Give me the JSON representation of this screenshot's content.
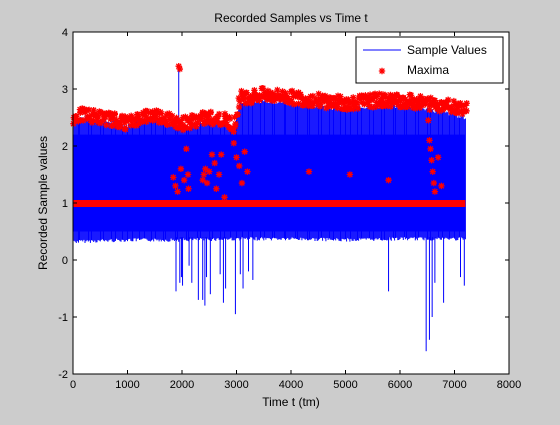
{
  "chart_data": {
    "type": "line",
    "title": "Recorded Samples vs Time t",
    "xlabel": "Time t (tm)",
    "ylabel": "Recorded Sample values",
    "xlim": [
      0,
      8000
    ],
    "ylim": [
      -2,
      4
    ],
    "xticks": [
      0,
      1000,
      2000,
      3000,
      4000,
      5000,
      6000,
      7000,
      8000
    ],
    "yticks": [
      -2,
      -1,
      0,
      1,
      2,
      3,
      4
    ],
    "xtick_labels": [
      "0",
      "1000",
      "2000",
      "3000",
      "4000",
      "5000",
      "6000",
      "7000",
      "8000"
    ],
    "ytick_labels": [
      "-2",
      "-1",
      "0",
      "1",
      "2",
      "3",
      "4"
    ],
    "grid": false,
    "legend_position": "top-right",
    "colors": {
      "sample_line": "#0000ff",
      "maxima_marker": "#ff0000"
    },
    "series": [
      {
        "name": "Sample Values",
        "style": "line",
        "band": {
          "x_start": 0,
          "x_end": 7200,
          "upper": [
            [
              0,
              2.45
            ],
            [
              200,
              2.5
            ],
            [
              500,
              2.45
            ],
            [
              800,
              2.4
            ],
            [
              1000,
              2.35
            ],
            [
              1200,
              2.45
            ],
            [
              1500,
              2.5
            ],
            [
              1800,
              2.35
            ],
            [
              2000,
              2.3
            ],
            [
              2200,
              2.35
            ],
            [
              2500,
              2.45
            ],
            [
              2800,
              2.4
            ],
            [
              2950,
              2.3
            ],
            [
              3050,
              2.75
            ],
            [
              3500,
              2.8
            ],
            [
              4000,
              2.75
            ],
            [
              4500,
              2.7
            ],
            [
              5000,
              2.65
            ],
            [
              5500,
              2.7
            ],
            [
              6000,
              2.7
            ],
            [
              6500,
              2.65
            ],
            [
              7000,
              2.55
            ],
            [
              7200,
              2.5
            ]
          ],
          "lower": [
            [
              0,
              0.35
            ],
            [
              1000,
              0.38
            ],
            [
              2000,
              0.38
            ],
            [
              3000,
              0.4
            ],
            [
              4000,
              0.4
            ],
            [
              5000,
              0.38
            ],
            [
              6000,
              0.4
            ],
            [
              7200,
              0.4
            ]
          ]
        },
        "spikes": [
          [
            1890,
            -0.55
          ],
          [
            1960,
            -0.4
          ],
          [
            1990,
            -0.3
          ],
          [
            2010,
            -0.45
          ],
          [
            2130,
            -0.1
          ],
          [
            2180,
            -0.4
          ],
          [
            2300,
            -0.7
          ],
          [
            2380,
            -0.7
          ],
          [
            2420,
            -0.8
          ],
          [
            2450,
            -0.3
          ],
          [
            2520,
            -0.6
          ],
          [
            2700,
            -0.25
          ],
          [
            2760,
            -0.75
          ],
          [
            2800,
            -0.5
          ],
          [
            2980,
            -0.95
          ],
          [
            3070,
            -0.25
          ],
          [
            3120,
            -0.5
          ],
          [
            3220,
            -0.2
          ],
          [
            3300,
            -0.35
          ],
          [
            5790,
            -0.55
          ],
          [
            6480,
            -1.6
          ],
          [
            6540,
            -1.4
          ],
          [
            6590,
            -1.0
          ],
          [
            6640,
            -0.4
          ],
          [
            6800,
            -0.75
          ],
          [
            7110,
            -0.3
          ],
          [
            7180,
            -0.45
          ]
        ],
        "peaks": [
          [
            1940,
            3.35
          ]
        ]
      },
      {
        "name": "Maxima",
        "style": "markers",
        "marker": "*",
        "upper_envelope": [
          [
            0,
            2.5
          ],
          [
            200,
            2.55
          ],
          [
            500,
            2.5
          ],
          [
            800,
            2.45
          ],
          [
            1000,
            2.4
          ],
          [
            1200,
            2.5
          ],
          [
            1500,
            2.55
          ],
          [
            1800,
            2.45
          ],
          [
            2000,
            2.4
          ],
          [
            2200,
            2.45
          ],
          [
            2500,
            2.5
          ],
          [
            2800,
            2.45
          ],
          [
            2950,
            2.35
          ],
          [
            3050,
            2.85
          ],
          [
            3500,
            2.9
          ],
          [
            4000,
            2.85
          ],
          [
            4500,
            2.8
          ],
          [
            5000,
            2.75
          ],
          [
            5500,
            2.8
          ],
          [
            6000,
            2.8
          ],
          [
            6500,
            2.75
          ],
          [
            7000,
            2.7
          ],
          [
            7200,
            2.65
          ]
        ],
        "baseline_y": 1.0,
        "scattered_points": [
          [
            1940,
            3.4
          ],
          [
            1960,
            3.35
          ],
          [
            1840,
            1.45
          ],
          [
            1880,
            1.3
          ],
          [
            1920,
            1.2
          ],
          [
            1980,
            1.6
          ],
          [
            2040,
            1.4
          ],
          [
            2080,
            1.95
          ],
          [
            2110,
            1.5
          ],
          [
            2120,
            1.25
          ],
          [
            2380,
            1.4
          ],
          [
            2400,
            1.5
          ],
          [
            2430,
            1.6
          ],
          [
            2460,
            1.35
          ],
          [
            2500,
            1.55
          ],
          [
            2550,
            1.85
          ],
          [
            2600,
            1.7
          ],
          [
            2630,
            1.25
          ],
          [
            2680,
            1.5
          ],
          [
            2720,
            1.85
          ],
          [
            2780,
            1.1
          ],
          [
            2800,
            2.45
          ],
          [
            2950,
            2.05
          ],
          [
            3000,
            1.8
          ],
          [
            3050,
            1.65
          ],
          [
            3100,
            1.35
          ],
          [
            3150,
            1.9
          ],
          [
            3200,
            1.55
          ],
          [
            4330,
            1.55
          ],
          [
            5080,
            1.5
          ],
          [
            5790,
            1.4
          ],
          [
            6520,
            2.45
          ],
          [
            6540,
            2.1
          ],
          [
            6560,
            1.95
          ],
          [
            6580,
            1.75
          ],
          [
            6600,
            1.55
          ],
          [
            6620,
            1.35
          ],
          [
            6640,
            1.2
          ],
          [
            6700,
            1.8
          ],
          [
            6760,
            1.3
          ]
        ]
      }
    ]
  }
}
